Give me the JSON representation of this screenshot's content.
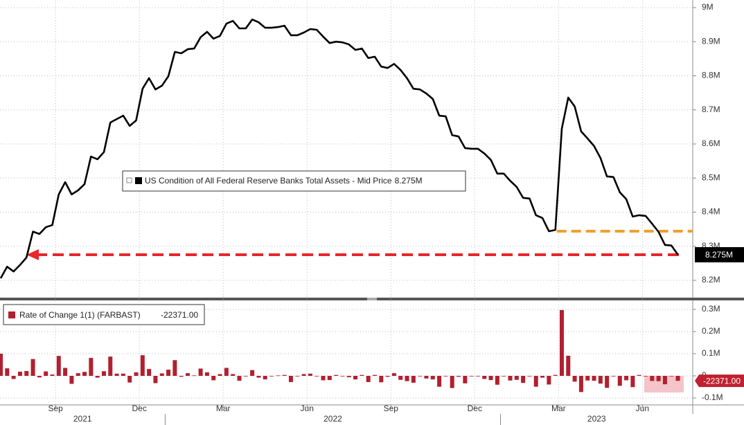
{
  "chart_data": [
    {
      "type": "line",
      "ylim": [
        8.15,
        9.0
      ],
      "yticks": [
        {
          "value": 9,
          "label": "9M"
        },
        {
          "value": 8.9,
          "label": "8.9M"
        },
        {
          "value": 8.8,
          "label": "8.8M"
        },
        {
          "value": 8.7,
          "label": "8.7M"
        },
        {
          "value": 8.6,
          "label": "8.6M"
        },
        {
          "value": 8.5,
          "label": "8.5M"
        },
        {
          "value": 8.4,
          "label": "8.4M"
        },
        {
          "value": 8.3,
          "label": "8.3M"
        },
        {
          "value": 8.2,
          "label": "8.2M"
        }
      ],
      "grid": true,
      "series": [
        {
          "name": "US Condition of All Federal Reserve Banks Total Assets - Mid Price",
          "color": "#000000",
          "last_value_label": "8.275M",
          "values": [
            8.206,
            8.24,
            8.226,
            8.245,
            8.267,
            8.343,
            8.336,
            8.356,
            8.362,
            8.452,
            8.488,
            8.452,
            8.464,
            8.482,
            8.563,
            8.555,
            8.576,
            8.663,
            8.673,
            8.683,
            8.653,
            8.669,
            8.762,
            8.793,
            8.76,
            8.771,
            8.799,
            8.87,
            8.866,
            8.878,
            8.88,
            8.913,
            8.929,
            8.909,
            8.917,
            8.953,
            8.961,
            8.939,
            8.939,
            8.965,
            8.957,
            8.941,
            8.941,
            8.943,
            8.947,
            8.919,
            8.919,
            8.927,
            8.937,
            8.935,
            8.915,
            8.896,
            8.9,
            8.898,
            8.892,
            8.876,
            8.88,
            8.852,
            8.856,
            8.827,
            8.823,
            8.835,
            8.817,
            8.793,
            8.762,
            8.76,
            8.748,
            8.732,
            8.683,
            8.681,
            8.626,
            8.622,
            8.588,
            8.586,
            8.586,
            8.572,
            8.553,
            8.513,
            8.513,
            8.492,
            8.474,
            8.442,
            8.44,
            8.391,
            8.383,
            8.344,
            8.348,
            8.645,
            8.736,
            8.71,
            8.637,
            8.616,
            8.594,
            8.559,
            8.505,
            8.503,
            8.458,
            8.438,
            8.387,
            8.391,
            8.389,
            8.366,
            8.342,
            8.304,
            8.302,
            8.275
          ]
        }
      ],
      "reference_lines": [
        {
          "value": 8.344,
          "color": "#f0a030"
        },
        {
          "value": 8.275,
          "color": "#e8262b"
        }
      ]
    },
    {
      "type": "bar",
      "ylim": [
        -0.13,
        0.33
      ],
      "yticks": [
        {
          "value": 0.3,
          "label": "0.3M"
        },
        {
          "value": 0.2,
          "label": "0.2M"
        },
        {
          "value": 0.1,
          "label": "0.1M"
        },
        0,
        {
          "value": -0.1,
          "label": "-0.1M"
        }
      ],
      "grid": true,
      "x": [
        "2021-07",
        "2021-07",
        "2021-07",
        "2021-07",
        "2021-08",
        "2021-08",
        "2021-08",
        "2021-08",
        "2021-08",
        "2021-09",
        "2021-09",
        "2021-09",
        "2021-09",
        "2021-10",
        "2021-10",
        "2021-10",
        "2021-10",
        "2021-10",
        "2021-11",
        "2021-11",
        "2021-11",
        "2021-11",
        "2021-12",
        "2021-12",
        "2021-12",
        "2021-12",
        "2022-01",
        "2022-01",
        "2022-01",
        "2022-01",
        "2022-01",
        "2022-02",
        "2022-02",
        "2022-02",
        "2022-02",
        "2022-03",
        "2022-03",
        "2022-03",
        "2022-03",
        "2022-04",
        "2022-04",
        "2022-04",
        "2022-04",
        "2022-05",
        "2022-05",
        "2022-05",
        "2022-05",
        "2022-05",
        "2022-06",
        "2022-06",
        "2022-06",
        "2022-06",
        "2022-07",
        "2022-07",
        "2022-07",
        "2022-07",
        "2022-07",
        "2022-08",
        "2022-08",
        "2022-08",
        "2022-08",
        "2022-09",
        "2022-09",
        "2022-09",
        "2022-09",
        "2022-10",
        "2022-10",
        "2022-10",
        "2022-10",
        "2022-10",
        "2022-11",
        "2022-11",
        "2022-11",
        "2022-11",
        "2022-12",
        "2022-12",
        "2022-12",
        "2022-12",
        "2023-01",
        "2023-01",
        "2023-01",
        "2023-01",
        "2023-01",
        "2023-02",
        "2023-02",
        "2023-02",
        "2023-02",
        "2023-03",
        "2023-03",
        "2023-03",
        "2023-03",
        "2023-04",
        "2023-04",
        "2023-04",
        "2023-04",
        "2023-04",
        "2023-05",
        "2023-05",
        "2023-05",
        "2023-05",
        "2023-06",
        "2023-06",
        "2023-06",
        "2023-06",
        "2023-07",
        "2023-07"
      ],
      "xticks": [
        {
          "value": "2021-09",
          "label": "Sep"
        },
        {
          "value": "2021-12",
          "label": "Dec"
        },
        {
          "value": "2022-03",
          "label": "Mar"
        },
        {
          "value": "2022-06",
          "label": "Jun"
        },
        {
          "value": "2022-09",
          "label": "Sep"
        },
        {
          "value": "2022-12",
          "label": "Dec"
        },
        {
          "value": "2023-03",
          "label": "Mar"
        },
        {
          "value": "2023-06",
          "label": "Jun"
        }
      ],
      "years": [
        "2021",
        "2022",
        "2023"
      ],
      "series": [
        {
          "name": "Rate of Change 1(1) (FARBAST)",
          "color": "#b1202f",
          "last_value_label": "-22371.00",
          "values": [
            0.1,
            0.034,
            -0.014,
            0.019,
            0.022,
            0.076,
            -0.007,
            0.02,
            0.006,
            0.09,
            0.036,
            -0.036,
            0.012,
            0.018,
            0.081,
            -0.008,
            0.021,
            0.087,
            0.01,
            0.01,
            -0.03,
            0.016,
            0.093,
            0.031,
            -0.033,
            0.011,
            0.028,
            0.071,
            -0.004,
            0.012,
            0.002,
            0.033,
            0.016,
            -0.02,
            0.008,
            0.036,
            0.008,
            -0.022,
            0,
            0.026,
            -0.008,
            -0.016,
            0,
            0.002,
            0.004,
            -0.028,
            0,
            0.008,
            0.01,
            -0.002,
            -0.02,
            -0.019,
            0.004,
            -0.002,
            -0.006,
            -0.016,
            0.004,
            -0.028,
            0.004,
            -0.029,
            -0.004,
            0.012,
            -0.018,
            -0.024,
            -0.031,
            -0.002,
            -0.012,
            -0.016,
            -0.049,
            -0.002,
            -0.055,
            -0.004,
            -0.034,
            -0.002,
            0,
            -0.014,
            -0.019,
            -0.04,
            0,
            -0.021,
            -0.018,
            -0.032,
            -0.002,
            -0.049,
            -0.008,
            -0.039,
            0.004,
            0.297,
            0.091,
            -0.026,
            -0.073,
            -0.021,
            -0.022,
            -0.035,
            -0.054,
            -0.002,
            -0.045,
            -0.02,
            -0.051,
            0.004,
            -0.002,
            -0.023,
            -0.024,
            -0.038,
            -0.002,
            -0.022371
          ]
        }
      ]
    }
  ]
}
